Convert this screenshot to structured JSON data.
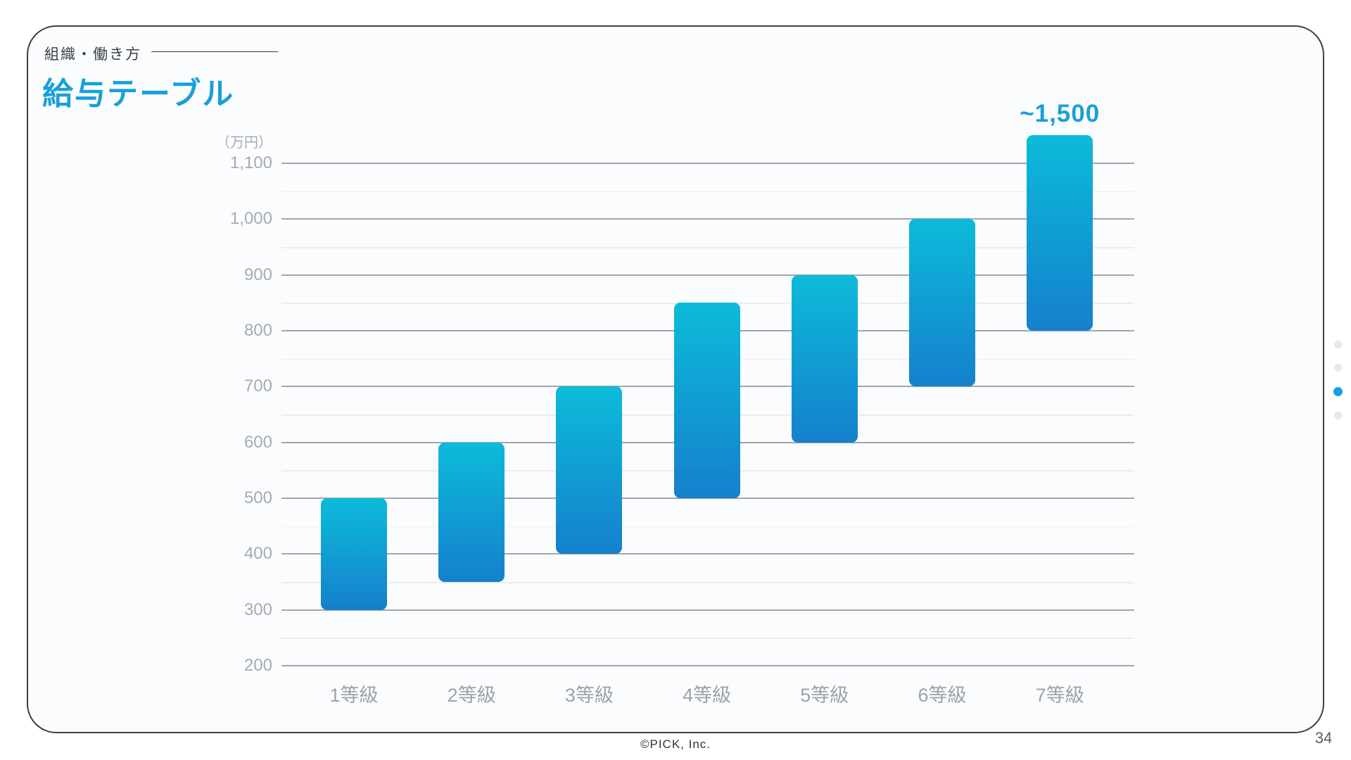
{
  "slide": {
    "section_label": "組織・働き方",
    "title": "給与テーブル"
  },
  "chart_data": {
    "type": "bar",
    "subtype": "floating-range-bars",
    "title": "給与テーブル",
    "unit_label": "（万円）",
    "categories": [
      "1等級",
      "2等級",
      "3等級",
      "4等級",
      "5等級",
      "6等級",
      "7等級"
    ],
    "series": [
      {
        "category": "1等級",
        "min": 300,
        "max": 500
      },
      {
        "category": "2等級",
        "min": 350,
        "max": 600
      },
      {
        "category": "3等級",
        "min": 400,
        "max": 700
      },
      {
        "category": "4等級",
        "min": 500,
        "max": 850
      },
      {
        "category": "5等級",
        "min": 600,
        "max": 900
      },
      {
        "category": "6等級",
        "min": 700,
        "max": 1000
      },
      {
        "category": "7等級",
        "min": 800,
        "max": 1500,
        "drawn_top": 1150,
        "annotation": "~1,500"
      }
    ],
    "y_axis": {
      "min": 200,
      "max": 1100,
      "major_step": 100,
      "minor_step": 50,
      "major_ticks": [
        {
          "value": 1100,
          "label": "1,100"
        },
        {
          "value": 1000,
          "label": "1,000"
        },
        {
          "value": 900,
          "label": "900"
        },
        {
          "value": 800,
          "label": "800"
        },
        {
          "value": 700,
          "label": "700"
        },
        {
          "value": 600,
          "label": "600"
        },
        {
          "value": 500,
          "label": "500"
        },
        {
          "value": 400,
          "label": "400"
        },
        {
          "value": 300,
          "label": "300"
        },
        {
          "value": 200,
          "label": "200"
        }
      ]
    },
    "grid": {
      "major_color": "#a2a6ac",
      "minor_color": "#eaecef"
    },
    "colors": {
      "bar_gradient_top": "#0cbbd9",
      "bar_gradient_bottom": "#1580cd",
      "annotation": "#18a0db",
      "axis_text": "#a6aab1"
    },
    "legend": false
  },
  "pagination": {
    "dots": [
      {
        "active": false
      },
      {
        "active": false
      },
      {
        "active": true
      },
      {
        "active": false
      }
    ],
    "active_color": "#18a0db",
    "inactive_color": "#e4e7eb"
  },
  "footer": {
    "copyright": "©PICK, Inc.",
    "page_number": "34"
  }
}
